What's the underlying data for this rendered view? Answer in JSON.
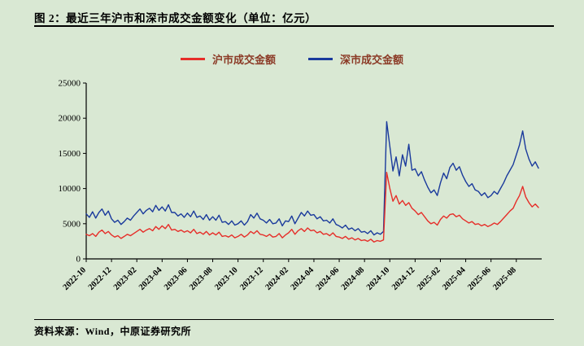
{
  "header": {
    "title": "图 2：最近三年沪市和深市成交金额变化（单位：亿元）"
  },
  "footer": {
    "source": "资料来源：Wind，中原证券研究所"
  },
  "colors": {
    "background": "#d9e8d3",
    "axis": "#000000",
    "legend_text": "#8b3a26",
    "shanghai_red": "#e62e29",
    "shenzhen_blue": "#1a3a9c"
  },
  "chart_data": {
    "type": "line",
    "title": "最近三年沪市和深市成交金额变化",
    "unit": "亿元",
    "xlabel": "",
    "ylabel": "",
    "ylim": [
      0,
      25000
    ],
    "yticks": [
      0,
      5000,
      10000,
      15000,
      20000,
      25000
    ],
    "grid": false,
    "legend_position": "top-center",
    "xtick_step": 8,
    "xtick_labels": [
      "2022-10",
      "2022-12",
      "2023-02",
      "2023-04",
      "2023-06",
      "2023-08",
      "2023-10",
      "2023-12",
      "2024-02",
      "2024-04",
      "2024-06",
      "2024-08",
      "2024-10",
      "2024-12",
      "2025-02",
      "2025-04",
      "2025-06",
      "2025-08"
    ],
    "series": [
      {
        "name": "沪市成交金额",
        "color": "#e62e29",
        "values": [
          3500,
          3300,
          3600,
          3200,
          3800,
          4100,
          3600,
          3900,
          3400,
          3100,
          3300,
          2900,
          3200,
          3500,
          3300,
          3600,
          3900,
          4200,
          3800,
          4100,
          4300,
          4000,
          4600,
          4200,
          4700,
          4300,
          4900,
          4100,
          4200,
          3900,
          4100,
          3800,
          4000,
          3700,
          4200,
          3600,
          3800,
          3500,
          3900,
          3400,
          3700,
          3400,
          3800,
          3200,
          3300,
          3100,
          3400,
          3000,
          3200,
          3500,
          3100,
          3400,
          3900,
          3600,
          4000,
          3500,
          3400,
          3200,
          3500,
          3100,
          3200,
          3600,
          3000,
          3400,
          3700,
          4200,
          3500,
          4000,
          4300,
          3900,
          4400,
          4000,
          4100,
          3700,
          3900,
          3500,
          3600,
          3300,
          3700,
          3200,
          3100,
          2900,
          3200,
          2800,
          3000,
          2700,
          2900,
          2600,
          2700,
          2500,
          2800,
          2400,
          2600,
          2500,
          2700,
          12300,
          10000,
          8200,
          9000,
          7800,
          8300,
          7600,
          8000,
          7200,
          6800,
          6300,
          6600,
          6000,
          5400,
          5000,
          5200,
          4800,
          5600,
          6100,
          5800,
          6300,
          6400,
          6000,
          6200,
          5700,
          5400,
          5100,
          5300,
          4900,
          5000,
          4700,
          4900,
          4600,
          4800,
          5100,
          4900,
          5300,
          5800,
          6300,
          6800,
          7200,
          8200,
          9000,
          10300,
          8800,
          8000,
          7400,
          7800,
          7300
        ]
      },
      {
        "name": "深市成交金额",
        "color": "#1a3a9c",
        "values": [
          6400,
          5900,
          6700,
          5800,
          6600,
          7100,
          6200,
          6800,
          5700,
          5200,
          5500,
          4900,
          5300,
          5800,
          5500,
          6100,
          6600,
          7100,
          6400,
          6900,
          7200,
          6700,
          7600,
          6900,
          7400,
          6800,
          7700,
          6600,
          6600,
          6100,
          6400,
          5900,
          6500,
          6000,
          6800,
          5900,
          6100,
          5600,
          6300,
          5500,
          6000,
          5500,
          6200,
          5200,
          5300,
          4900,
          5400,
          4800,
          5000,
          5400,
          4800,
          5300,
          6300,
          5800,
          6500,
          5700,
          5500,
          5100,
          5600,
          5000,
          5100,
          5700,
          4700,
          5400,
          5300,
          6100,
          5000,
          5800,
          6600,
          6100,
          6800,
          6200,
          6300,
          5700,
          6000,
          5400,
          5500,
          5100,
          5700,
          4900,
          4700,
          4400,
          4800,
          4200,
          4400,
          4000,
          4300,
          3800,
          3900,
          3600,
          4000,
          3400,
          3700,
          3500,
          3900,
          19500,
          16000,
          12500,
          14500,
          11800,
          14800,
          13200,
          16300,
          12600,
          12800,
          11800,
          12400,
          11200,
          10200,
          9400,
          9800,
          9000,
          10800,
          12200,
          11400,
          13000,
          13600,
          12600,
          13100,
          11900,
          11000,
          10300,
          10700,
          9800,
          9600,
          9000,
          9400,
          8700,
          9000,
          9600,
          9200,
          10000,
          10800,
          11800,
          12600,
          13400,
          14800,
          16200,
          18200,
          15600,
          14200,
          13200,
          13800,
          12900
        ]
      }
    ]
  }
}
